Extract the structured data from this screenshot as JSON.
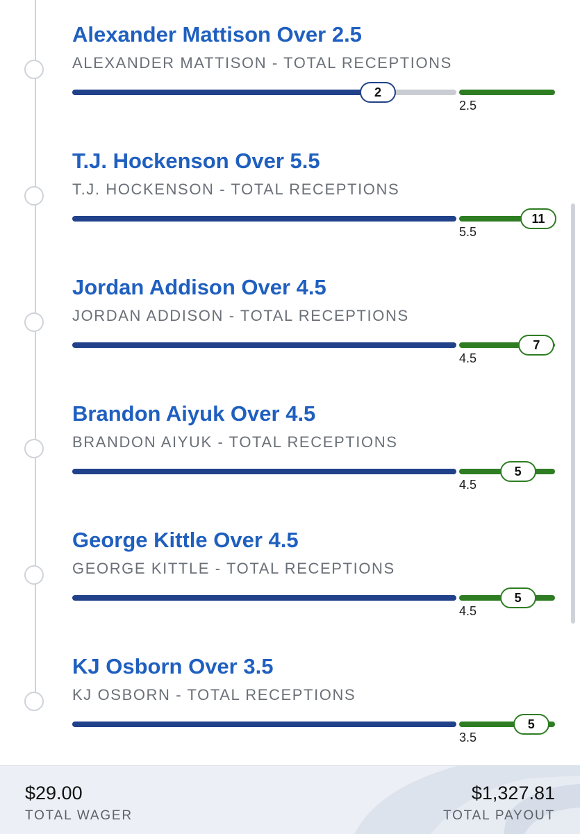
{
  "legs": [
    {
      "title": "Alexander Mattison Over 2.5",
      "subtitle": "ALEXANDER MATTISON - TOTAL RECEPTIONS",
      "line_label": "2.5",
      "result_value": "2",
      "line": 2.5,
      "result": 2,
      "hit": false
    },
    {
      "title": "T.J. Hockenson Over 5.5",
      "subtitle": "T.J. HOCKENSON - TOTAL RECEPTIONS",
      "line_label": "5.5",
      "result_value": "11",
      "line": 5.5,
      "result": 11,
      "hit": true
    },
    {
      "title": "Jordan Addison Over 4.5",
      "subtitle": "JORDAN ADDISON - TOTAL RECEPTIONS",
      "line_label": "4.5",
      "result_value": "7",
      "line": 4.5,
      "result": 7,
      "hit": true
    },
    {
      "title": "Brandon Aiyuk Over 4.5",
      "subtitle": "BRANDON AIYUK - TOTAL RECEPTIONS",
      "line_label": "4.5",
      "result_value": "5",
      "line": 4.5,
      "result": 5,
      "hit": true
    },
    {
      "title": "George Kittle Over 4.5",
      "subtitle": "GEORGE KITTLE - TOTAL RECEPTIONS",
      "line_label": "4.5",
      "result_value": "5",
      "line": 4.5,
      "result": 5,
      "hit": true
    },
    {
      "title": "KJ Osborn Over 3.5",
      "subtitle": "KJ OSBORN - TOTAL RECEPTIONS",
      "line_label": "3.5",
      "result_value": "5",
      "line": 3.5,
      "result": 5,
      "hit": true
    }
  ],
  "footer": {
    "wager_amount": "$29.00",
    "wager_label": "TOTAL WAGER",
    "payout_amount": "$1,327.81",
    "payout_label": "TOTAL PAYOUT"
  },
  "colors": {
    "title_blue": "#1f5fbf",
    "progress_blue": "#21428a",
    "over_green": "#2e7d23",
    "remaining_gray": "#c9cdd3"
  },
  "icons": {
    "timeline_node": "circle-node-icon",
    "footer_watermark": "logo-watermark-icon"
  }
}
